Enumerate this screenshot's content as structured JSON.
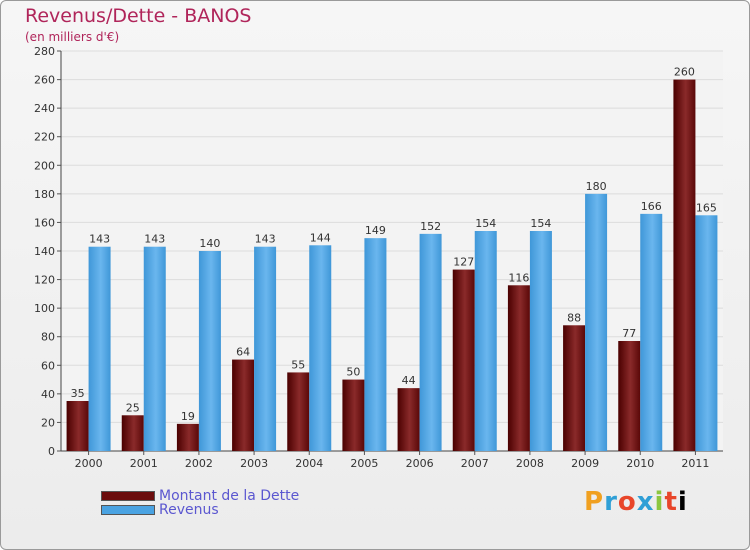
{
  "chart_data": {
    "type": "bar",
    "title": "Revenus/Dette - BANOS",
    "subtitle": "(en milliers d'€)",
    "categories": [
      "2000",
      "2001",
      "2002",
      "2003",
      "2004",
      "2005",
      "2006",
      "2007",
      "2008",
      "2009",
      "2010",
      "2011"
    ],
    "series": [
      {
        "name": "Montant de la Dette",
        "color": "#6b0c0c",
        "values": [
          35,
          25,
          19,
          64,
          55,
          50,
          44,
          127,
          116,
          88,
          77,
          260
        ]
      },
      {
        "name": "Revenus",
        "color": "#4aa3e2",
        "values": [
          143,
          143,
          140,
          143,
          144,
          149,
          152,
          154,
          154,
          180,
          166,
          165
        ]
      }
    ],
    "ylim": [
      0,
      280
    ],
    "yticks": [
      0,
      20,
      40,
      60,
      80,
      100,
      120,
      140,
      160,
      180,
      200,
      220,
      240,
      260,
      280
    ],
    "grid": true,
    "legend_position": "bottom-left"
  },
  "legend": {
    "dette_label": "Montant de la Dette",
    "revenus_label": "Revenus"
  },
  "logo": {
    "letters": [
      "P",
      "r",
      "o",
      "x",
      "i",
      "t",
      "i"
    ]
  }
}
